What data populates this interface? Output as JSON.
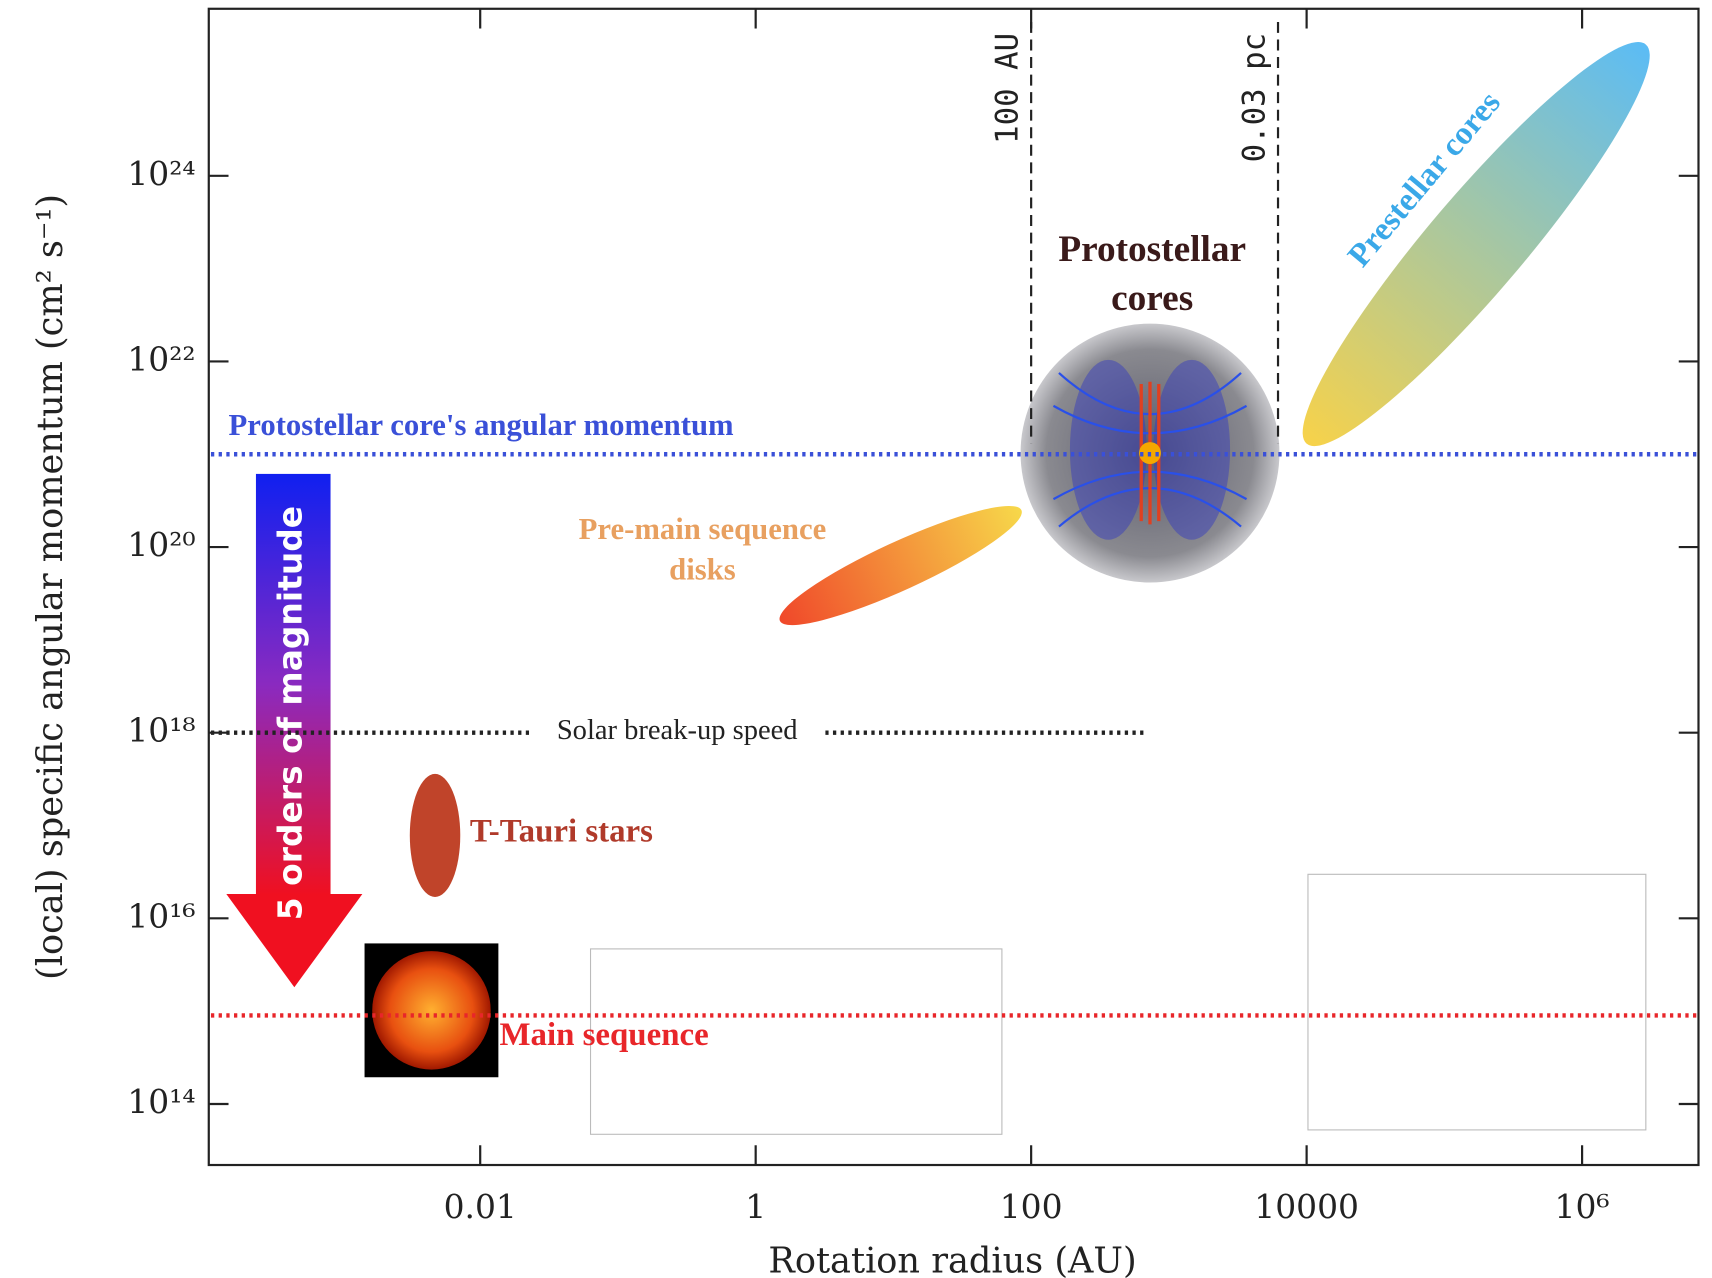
{
  "chart_data": {
    "type": "region",
    "x_label": "Rotation radius (AU)",
    "y_label": "(local) specific angular momentum (cm² s⁻¹)",
    "xscale": "log",
    "yscale": "log",
    "xlim": [
      0.000107,
      7000000
    ],
    "ylim": [
      22000000000000.0,
      6.3e+25
    ],
    "xticks": [
      0.01,
      1,
      100,
      10000,
      {
        "value": 1000000,
        "label": "10⁶"
      }
    ],
    "yticks": [
      {
        "value": 100000000000000.0,
        "label": "10¹⁴"
      },
      {
        "value": 1e+16,
        "label": "10¹⁶"
      },
      {
        "value": 1e+18,
        "label": "10¹⁸"
      },
      {
        "value": 1e+20,
        "label": "10²⁰"
      },
      {
        "value": 1e+22,
        "label": "10²²"
      },
      {
        "value": 1e+24,
        "label": "10²⁴"
      }
    ],
    "regions": [
      {
        "name": [
          "Pre-main sequence",
          "disks"
        ],
        "colors": [
          "#f0482a",
          "#f7d84a"
        ],
        "x": [
          1.5,
          85
        ],
        "y": [
          1.6e+19,
          2.5e+20
        ]
      },
      {
        "name": [
          "Prestellar cores"
        ],
        "colors": [
          "#f7d24a",
          "#5bbcf5"
        ],
        "x": [
          10000,
          2900000
        ],
        "y": [
          1.3e+21,
          2.6e+25
        ]
      },
      {
        "name": [
          "T-Tauri stars"
        ],
        "colors": [
          "#c0442a",
          "#c0442a"
        ],
        "x": [
          0.0047,
          0.0047
        ],
        "y": [
          1.7e+16,
          3.6e+17
        ]
      }
    ],
    "hlines": [
      {
        "name": "Protostellar core's angular momentum",
        "color": "#3a50d8",
        "value": 1e+21
      },
      {
        "name": "Solar break-up speed",
        "color": "#222222",
        "value": 1e+18,
        "x_end": 700
      },
      {
        "name": "Main sequence",
        "color": "#e8262a",
        "value": 900000000000000.0
      }
    ],
    "vlines": [
      {
        "name": "100 AU",
        "value": 100
      },
      {
        "name": "0.03 pc",
        "value": 6200
      }
    ],
    "annotations": {
      "protostellar": [
        "Protostellar",
        "cores"
      ],
      "arrow": "5 orders of magnitude"
    }
  }
}
